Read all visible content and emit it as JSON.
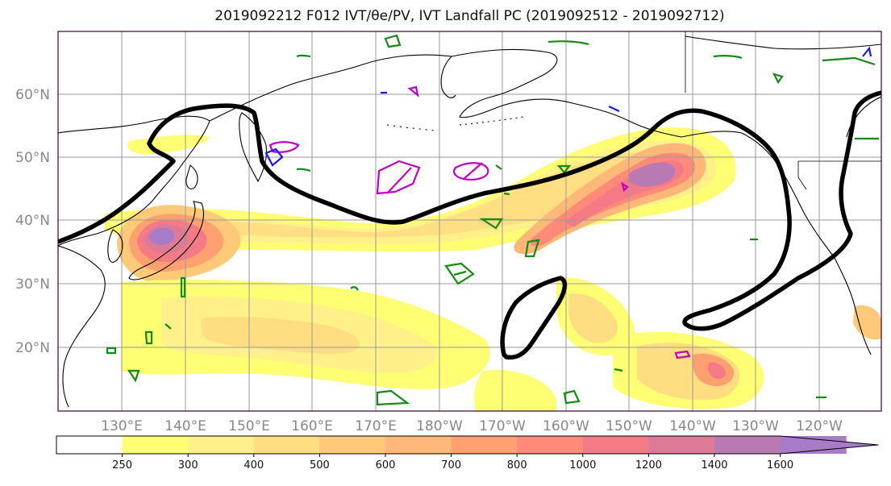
{
  "title": "2019092212 F012 IVT/θe/PV, IVT Landfall PC (2019092512 - 2019092712)",
  "map": {
    "lat_ticks": [
      "60°N",
      "50°N",
      "40°N",
      "30°N",
      "20°N"
    ],
    "lon_ticks": [
      "130°E",
      "140°E",
      "150°E",
      "160°E",
      "170°E",
      "180°W",
      "170°W",
      "160°W",
      "150°W",
      "140°W",
      "130°W",
      "120°W"
    ],
    "colors": {
      "land_outline": "#000000",
      "ivt_contour": "#000000",
      "theta_e_contour": "#138a13",
      "pv_contour_magenta": "#c000c0",
      "pv_contour_blue": "#1a1aee",
      "frame": "#3a0033"
    }
  },
  "colorbar": {
    "levels": [
      "250",
      "300",
      "400",
      "500",
      "600",
      "700",
      "800",
      "1000",
      "1200",
      "1400",
      "1600"
    ],
    "colors": [
      "#ffffff",
      "#ffff73",
      "#fff08a",
      "#ffdd80",
      "#ffc97a",
      "#ffb878",
      "#ffa070",
      "#ff8a7a",
      "#f47a86",
      "#dc7a98",
      "#b97ab4",
      "#a77bc8"
    ]
  }
}
